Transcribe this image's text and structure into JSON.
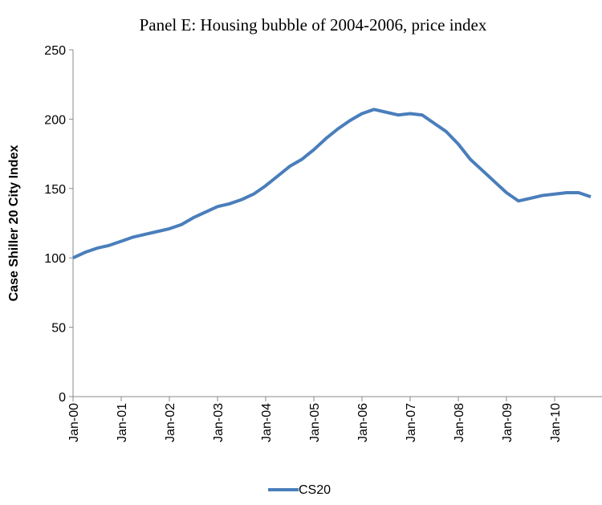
{
  "chart_data": {
    "type": "line",
    "title": "Panel E: Housing bubble of 2004-2006, price index",
    "y_label": "Case Shiller 20 City Index",
    "categories": [
      "Jan-00",
      null,
      null,
      null,
      "Jan-01",
      null,
      null,
      null,
      "Jan-02",
      null,
      null,
      null,
      "Jan-03",
      null,
      null,
      null,
      "Jan-04",
      null,
      null,
      null,
      "Jan-05",
      null,
      null,
      null,
      "Jan-06",
      null,
      null,
      null,
      "Jan-07",
      null,
      null,
      null,
      "Jan-08",
      null,
      null,
      null,
      "Jan-09",
      null,
      null,
      null,
      "Jan-10",
      null,
      null,
      null
    ],
    "series": [
      {
        "name": "CS20",
        "color": "#4a7ebb",
        "values": [
          100,
          104,
          107,
          109,
          112,
          115,
          117,
          119,
          121,
          124,
          129,
          133,
          137,
          139,
          142,
          146,
          152,
          159,
          166,
          171,
          178,
          186,
          193,
          199,
          204,
          207,
          205,
          203,
          204,
          203,
          197,
          191,
          182,
          171,
          163,
          155,
          147,
          141,
          143,
          145,
          146,
          147,
          147,
          144
        ]
      }
    ],
    "ylim": [
      0,
      250
    ],
    "yticks": [
      0,
      50,
      100,
      150,
      200,
      250
    ],
    "grid": false,
    "legend": "bottom"
  }
}
